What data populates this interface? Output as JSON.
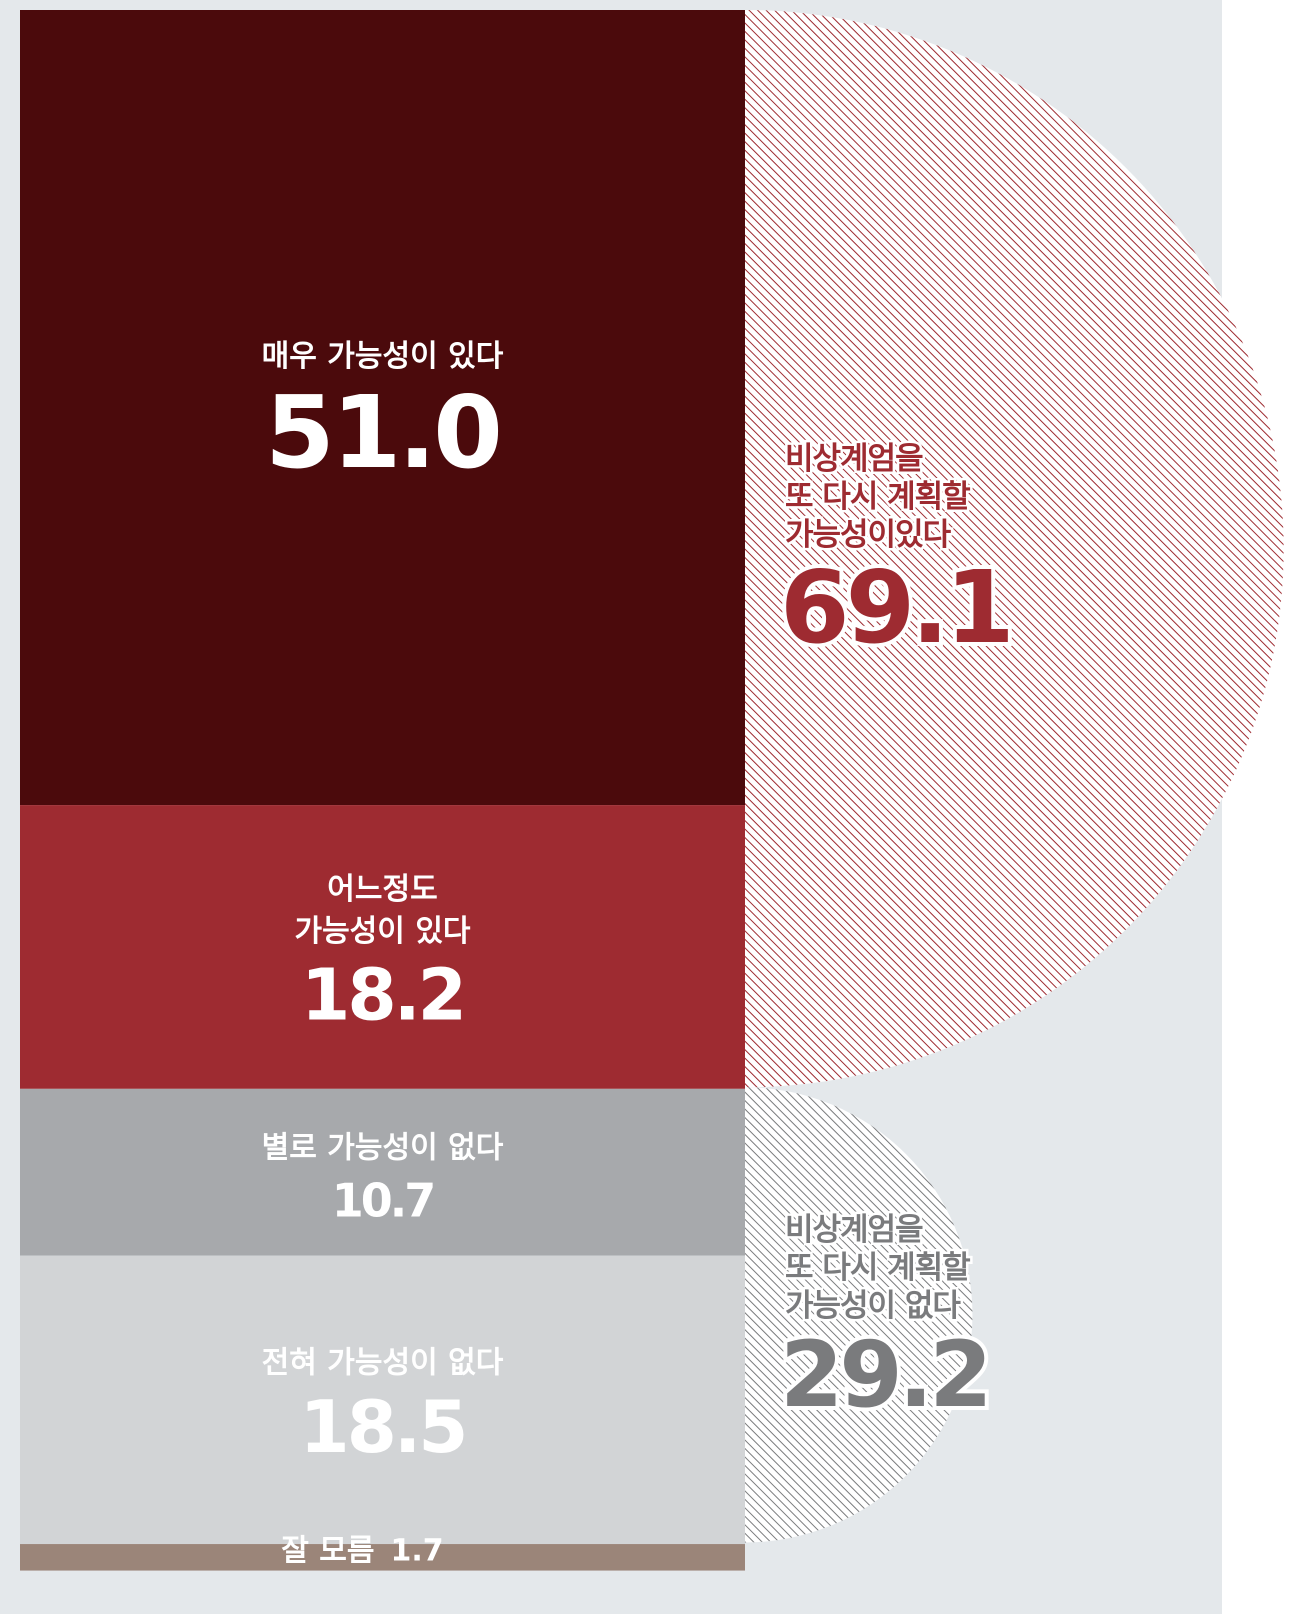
{
  "chart_data": {
    "type": "stacked-column",
    "categories": [
      [
        "매우 가능성이 있다"
      ],
      [
        "어느정도",
        "가능성이 있다"
      ],
      [
        "별로 가능성이 없다"
      ],
      [
        "전혀 가능성이 없다"
      ],
      [
        "잘 모름"
      ]
    ],
    "values": [
      51.0,
      18.2,
      10.7,
      18.5,
      1.7
    ],
    "value_labels": [
      "51.0",
      "18.2",
      "10.7",
      "18.5",
      "1.7"
    ],
    "colors": [
      "#4b0a0c",
      "#9e2b31",
      "#a7a9ac",
      "#d2d4d6",
      "#9b8579"
    ],
    "groups": [
      {
        "name": [
          "비상계엄을",
          "또 다시 계획할",
          "가능성이있다"
        ],
        "value": 69.1,
        "color": "#9e2b31"
      },
      {
        "name": [
          "비상계엄을",
          "또 다시 계획할",
          "가능성이 없다"
        ],
        "value": 29.2,
        "color": "#7a7b7d"
      }
    ]
  }
}
